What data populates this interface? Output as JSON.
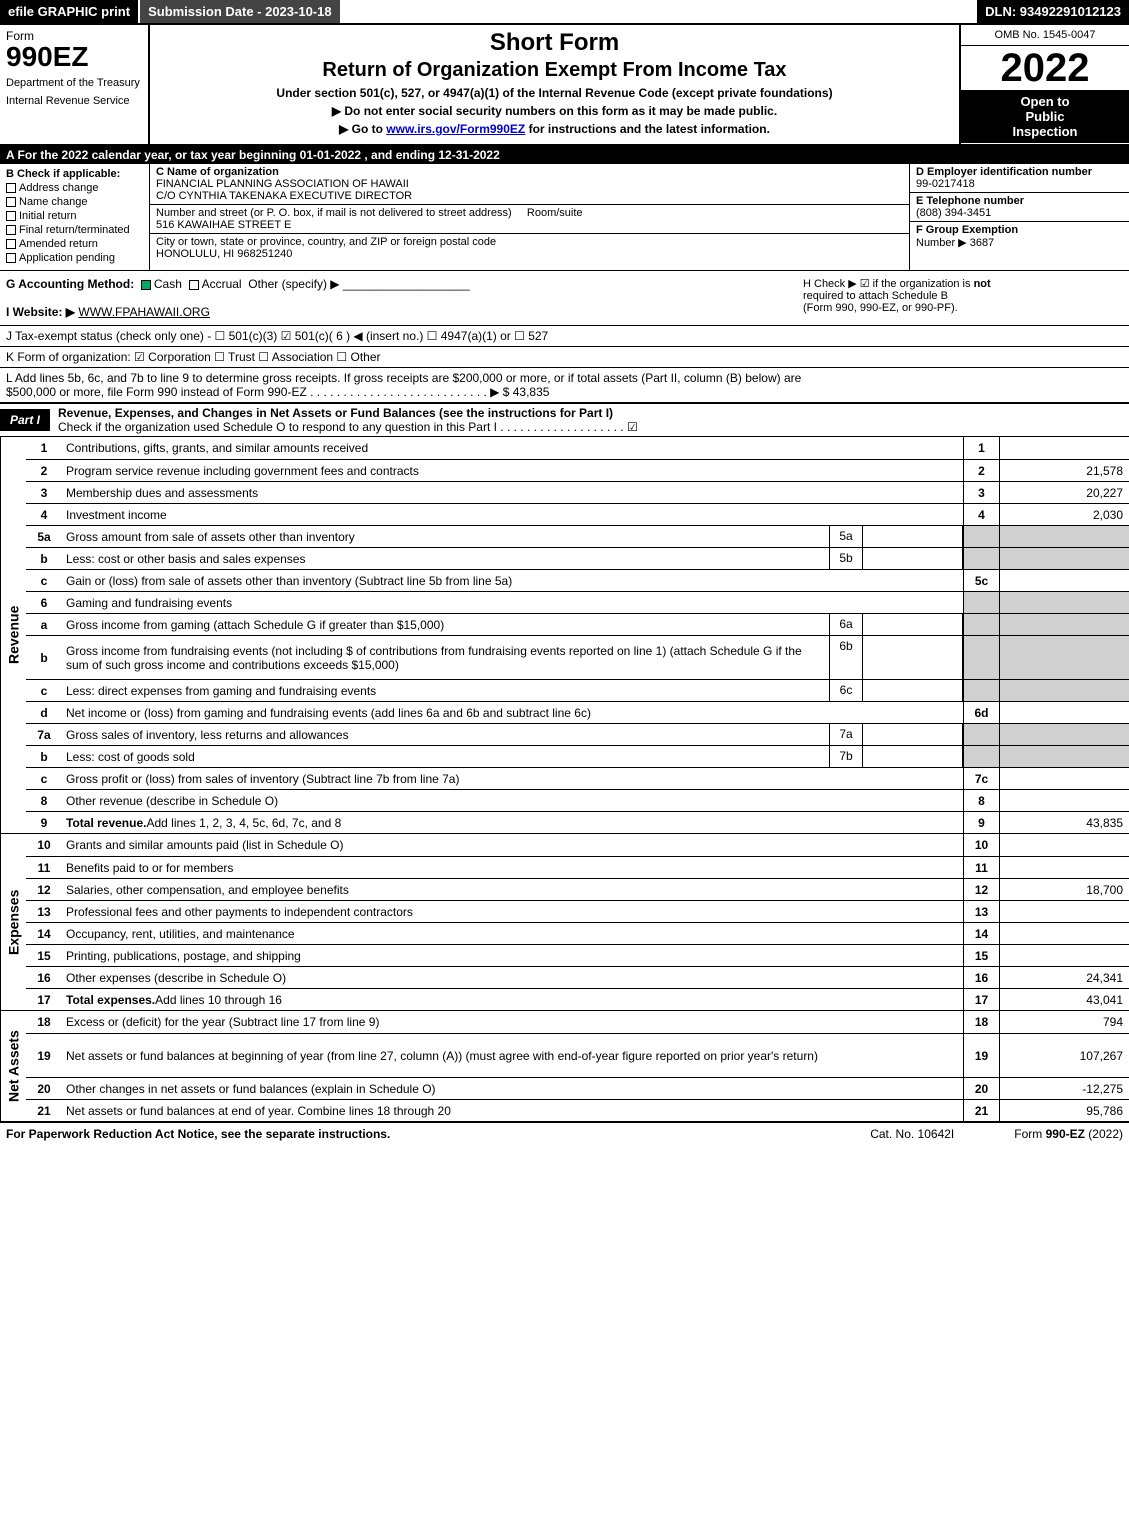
{
  "topbar": {
    "efile": "efile GRAPHIC print",
    "submission": "Submission Date - 2023-10-18",
    "dln": "DLN: 93492291012123"
  },
  "header": {
    "form_label": "Form",
    "form_number": "990EZ",
    "dept1": "Department of the Treasury",
    "dept2": "Internal Revenue Service",
    "short_form": "Short Form",
    "return_title": "Return of Organization Exempt From Income Tax",
    "under_section": "Under section 501(c), 527, or 4947(a)(1) of the Internal Revenue Code (except private foundations)",
    "directive1": "▶ Do not enter social security numbers on this form as it may be made public.",
    "directive2_pre": "▶ Go to ",
    "directive2_link": "www.irs.gov/Form990EZ",
    "directive2_post": " for instructions and the latest information.",
    "omb": "OMB No. 1545-0047",
    "year": "2022",
    "inspect1": "Open to",
    "inspect2": "Public",
    "inspect3": "Inspection"
  },
  "row_a": "A  For the 2022 calendar year, or tax year beginning 01-01-2022 , and ending 12-31-2022",
  "section_b": {
    "title": "B  Check if applicable:",
    "opts": [
      "Address change",
      "Name change",
      "Initial return",
      "Final return/terminated",
      "Amended return",
      "Application pending"
    ]
  },
  "section_c": {
    "name_label": "C Name of organization",
    "name1": "FINANCIAL PLANNING ASSOCIATION OF HAWAII",
    "name2": "C/O CYNTHIA TAKENAKA EXECUTIVE DIRECTOR",
    "addr_label": "Number and street (or P. O. box, if mail is not delivered to street address)",
    "room_label": "Room/suite",
    "addr": "516 KAWAIHAE STREET E",
    "city_label": "City or town, state or province, country, and ZIP or foreign postal code",
    "city": "HONOLULU, HI  968251240"
  },
  "section_def": {
    "d_label": "D Employer identification number",
    "d_val": "99-0217418",
    "e_label": "E Telephone number",
    "e_val": "(808) 394-3451",
    "f_label": "F Group Exemption",
    "f_label2": "Number  ▶",
    "f_val": "3687"
  },
  "row_g": {
    "label": "G Accounting Method:",
    "cash": "Cash",
    "accrual": "Accrual",
    "other": "Other (specify) ▶"
  },
  "row_h": {
    "text1": "H  Check ▶ ☑ if the organization is ",
    "not": "not",
    "text2": " required to attach Schedule B",
    "text3": "(Form 990, 990-EZ, or 990-PF)."
  },
  "row_i": {
    "label": "I Website: ▶",
    "val": "WWW.FPAHAWAII.ORG"
  },
  "row_j": "J Tax-exempt status (check only one) - ☐ 501(c)(3)  ☑ 501(c)( 6 ) ◀ (insert no.)  ☐ 4947(a)(1) or  ☐ 527",
  "row_k": "K Form of organization:  ☑ Corporation  ☐ Trust  ☐ Association  ☐ Other",
  "row_l": {
    "text1": "L Add lines 5b, 6c, and 7b to line 9 to determine gross receipts. If gross receipts are $200,000 or more, or if total assets (Part II, column (B) below) are",
    "text2": "$500,000 or more, file Form 990 instead of Form 990-EZ  .  .  .  .  .  .  .  .  .  .  .  .  .  .  .  .  .  .  .  .  .  .  .  .  .  .  .  ▶ $ 43,835"
  },
  "part1": {
    "label": "Part I",
    "title": "Revenue, Expenses, and Changes in Net Assets or Fund Balances (see the instructions for Part I)",
    "note": "Check if the organization used Schedule O to respond to any question in this Part I  .  .  .  .  .  .  .  .  .  .  .  .  .  .  .  .  .  .  .  ☑"
  },
  "revenue": [
    {
      "n": "1",
      "desc": "Contributions, gifts, grants, and similar amounts received",
      "r": "1",
      "v": ""
    },
    {
      "n": "2",
      "desc": "Program service revenue including government fees and contracts",
      "r": "2",
      "v": "21,578"
    },
    {
      "n": "3",
      "desc": "Membership dues and assessments",
      "r": "3",
      "v": "20,227"
    },
    {
      "n": "4",
      "desc": "Investment income",
      "r": "4",
      "v": "2,030"
    },
    {
      "n": "5a",
      "desc": "Gross amount from sale of assets other than inventory",
      "sub": "5a",
      "sv": "",
      "shade": true
    },
    {
      "n": "b",
      "desc": "Less: cost or other basis and sales expenses",
      "sub": "5b",
      "sv": "",
      "shade": true
    },
    {
      "n": "c",
      "desc": "Gain or (loss) from sale of assets other than inventory (Subtract line 5b from line 5a)",
      "r": "5c",
      "v": ""
    },
    {
      "n": "6",
      "desc": "Gaming and fundraising events",
      "shadeonly": true
    },
    {
      "n": "a",
      "desc": "Gross income from gaming (attach Schedule G if greater than $15,000)",
      "sub": "6a",
      "sv": "",
      "shade": true
    },
    {
      "n": "b",
      "desc": "Gross income from fundraising events (not including $                    of contributions from fundraising events reported on line 1) (attach Schedule G if the sum of such gross income and contributions exceeds $15,000)",
      "sub": "6b",
      "sv": "",
      "shade": true,
      "tall": true
    },
    {
      "n": "c",
      "desc": "Less: direct expenses from gaming and fundraising events",
      "sub": "6c",
      "sv": "",
      "shade": true
    },
    {
      "n": "d",
      "desc": "Net income or (loss) from gaming and fundraising events (add lines 6a and 6b and subtract line 6c)",
      "r": "6d",
      "v": ""
    },
    {
      "n": "7a",
      "desc": "Gross sales of inventory, less returns and allowances",
      "sub": "7a",
      "sv": "",
      "shade": true
    },
    {
      "n": "b",
      "desc": "Less: cost of goods sold",
      "sub": "7b",
      "sv": "",
      "shade": true
    },
    {
      "n": "c",
      "desc": "Gross profit or (loss) from sales of inventory (Subtract line 7b from line 7a)",
      "r": "7c",
      "v": ""
    },
    {
      "n": "8",
      "desc": "Other revenue (describe in Schedule O)",
      "r": "8",
      "v": ""
    },
    {
      "n": "9",
      "desc": "Total revenue. Add lines 1, 2, 3, 4, 5c, 6d, 7c, and 8",
      "r": "9",
      "v": "43,835",
      "bold": true,
      "arrow": true
    }
  ],
  "expenses": [
    {
      "n": "10",
      "desc": "Grants and similar amounts paid (list in Schedule O)",
      "r": "10",
      "v": ""
    },
    {
      "n": "11",
      "desc": "Benefits paid to or for members",
      "r": "11",
      "v": ""
    },
    {
      "n": "12",
      "desc": "Salaries, other compensation, and employee benefits",
      "r": "12",
      "v": "18,700"
    },
    {
      "n": "13",
      "desc": "Professional fees and other payments to independent contractors",
      "r": "13",
      "v": ""
    },
    {
      "n": "14",
      "desc": "Occupancy, rent, utilities, and maintenance",
      "r": "14",
      "v": ""
    },
    {
      "n": "15",
      "desc": "Printing, publications, postage, and shipping",
      "r": "15",
      "v": ""
    },
    {
      "n": "16",
      "desc": "Other expenses (describe in Schedule O)",
      "r": "16",
      "v": "24,341"
    },
    {
      "n": "17",
      "desc": "Total expenses. Add lines 10 through 16",
      "r": "17",
      "v": "43,041",
      "bold": true,
      "arrow": true
    }
  ],
  "netassets": [
    {
      "n": "18",
      "desc": "Excess or (deficit) for the year (Subtract line 17 from line 9)",
      "r": "18",
      "v": "794"
    },
    {
      "n": "19",
      "desc": "Net assets or fund balances at beginning of year (from line 27, column (A)) (must agree with end-of-year figure reported on prior year's return)",
      "r": "19",
      "v": "107,267",
      "tall": true
    },
    {
      "n": "20",
      "desc": "Other changes in net assets or fund balances (explain in Schedule O)",
      "r": "20",
      "v": "-12,275"
    },
    {
      "n": "21",
      "desc": "Net assets or fund balances at end of year. Combine lines 18 through 20",
      "r": "21",
      "v": "95,786"
    }
  ],
  "footer": {
    "left": "For Paperwork Reduction Act Notice, see the separate instructions.",
    "mid": "Cat. No. 10642I",
    "right_pre": "Form ",
    "right_bold": "990-EZ",
    "right_post": " (2022)"
  },
  "labels": {
    "revenue": "Revenue",
    "expenses": "Expenses",
    "netassets": "Net Assets"
  }
}
